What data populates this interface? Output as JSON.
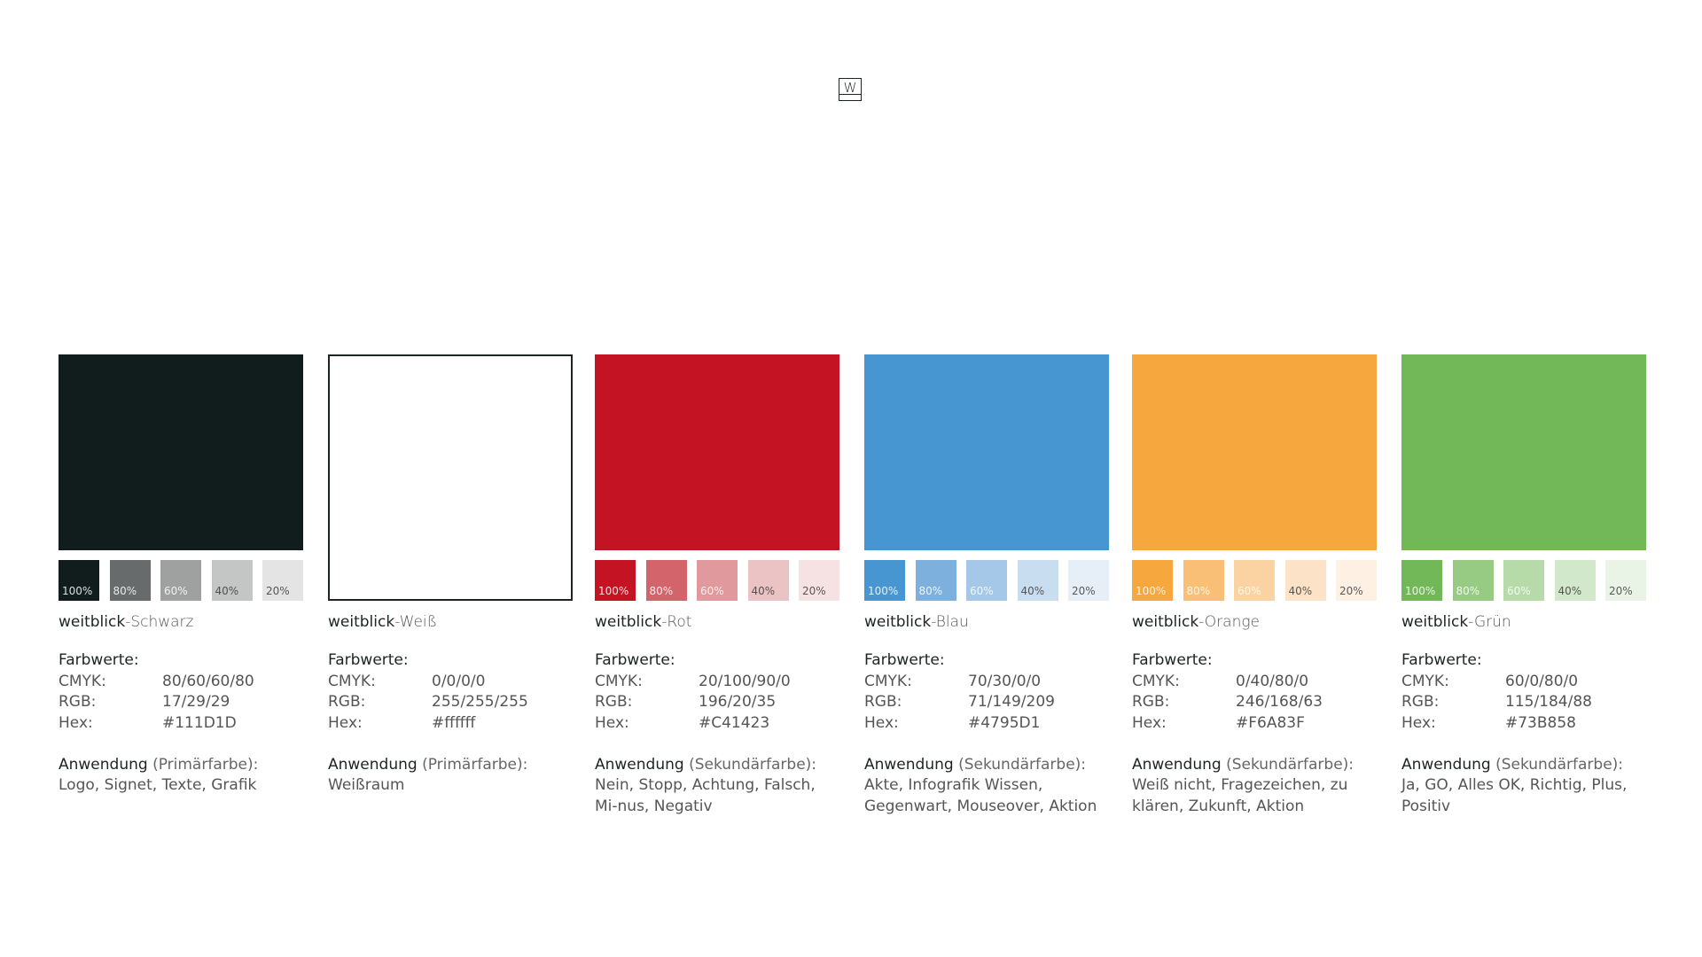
{
  "logo": {
    "letter": "W"
  },
  "labels": {
    "farbwerte": "Farbwerte:",
    "cmyk": "CMYK:",
    "rgb": "RGB:",
    "hex": "Hex:",
    "anwendung": "Anwendung",
    "brand": "weitblick"
  },
  "tint_labels": [
    "100%",
    "80%",
    "60%",
    "40%",
    "20%"
  ],
  "colors": [
    {
      "name": "-Schwarz",
      "hex_color": "#111D1D",
      "cmyk": "80/60/60/80",
      "rgb": "17/29/29",
      "hex": "#111D1D",
      "type": "(Primärfarbe):",
      "usage": "Logo, Signet, Texte, Grafik",
      "tints": [
        "#111D1D",
        "#676b6b",
        "#9fa1a1",
        "#c4c5c5",
        "#e4e4e4"
      ]
    },
    {
      "name": "-Weiß",
      "hex_color": "#FFFFFF",
      "cmyk": "0/0/0/0",
      "rgb": "255/255/255",
      "hex": "#ffffff",
      "type": "(Primärfarbe):",
      "usage": "Weißraum",
      "tints": []
    },
    {
      "name": "-Rot",
      "hex_color": "#C41423",
      "cmyk": "20/100/90/0",
      "rgb": "196/20/35",
      "hex": "#C41423",
      "type": "(Sekundärfarbe):",
      "usage": "Nein, Stopp, Achtung, Falsch, Mi-nus, Negativ",
      "tints": [
        "#C41423",
        "#d4646b",
        "#e09a9e",
        "#ecc3c5",
        "#f6e2e3"
      ]
    },
    {
      "name": "-Blau",
      "hex_color": "#4795D1",
      "cmyk": "70/30/0/0",
      "rgb": "71/149/209",
      "hex": "#4795D1",
      "type": "(Sekundärfarbe):",
      "usage": "Akte, Infografik Wissen, Gegenwart, Mouseover, Aktion",
      "tints": [
        "#4795D1",
        "#7eb0de",
        "#a6c8e8",
        "#c9ddf1",
        "#e6eff8"
      ]
    },
    {
      "name": "-Orange",
      "hex_color": "#F6A83F",
      "cmyk": "0/40/80/0",
      "rgb": "246/168/63",
      "hex": "#F6A83F",
      "type": "(Sekundärfarbe):",
      "usage": "Weiß nicht, Fragezeichen, zu klären, Zukunft, Aktion",
      "tints": [
        "#F6A83F",
        "#f9bf76",
        "#fbd2a1",
        "#fce2c6",
        "#fef1e4"
      ]
    },
    {
      "name": "-Grün",
      "hex_color": "#73B858",
      "cmyk": "60/0/80/0",
      "rgb": "115/184/88",
      "hex": "#73B858",
      "type": "(Sekundärfarbe):",
      "usage": "Ja, GO, Alles OK, Richtig, Plus, Positiv",
      "tints": [
        "#73B858",
        "#97ca83",
        "#b6daa8",
        "#d2e8ca",
        "#eaf4e6"
      ]
    }
  ]
}
